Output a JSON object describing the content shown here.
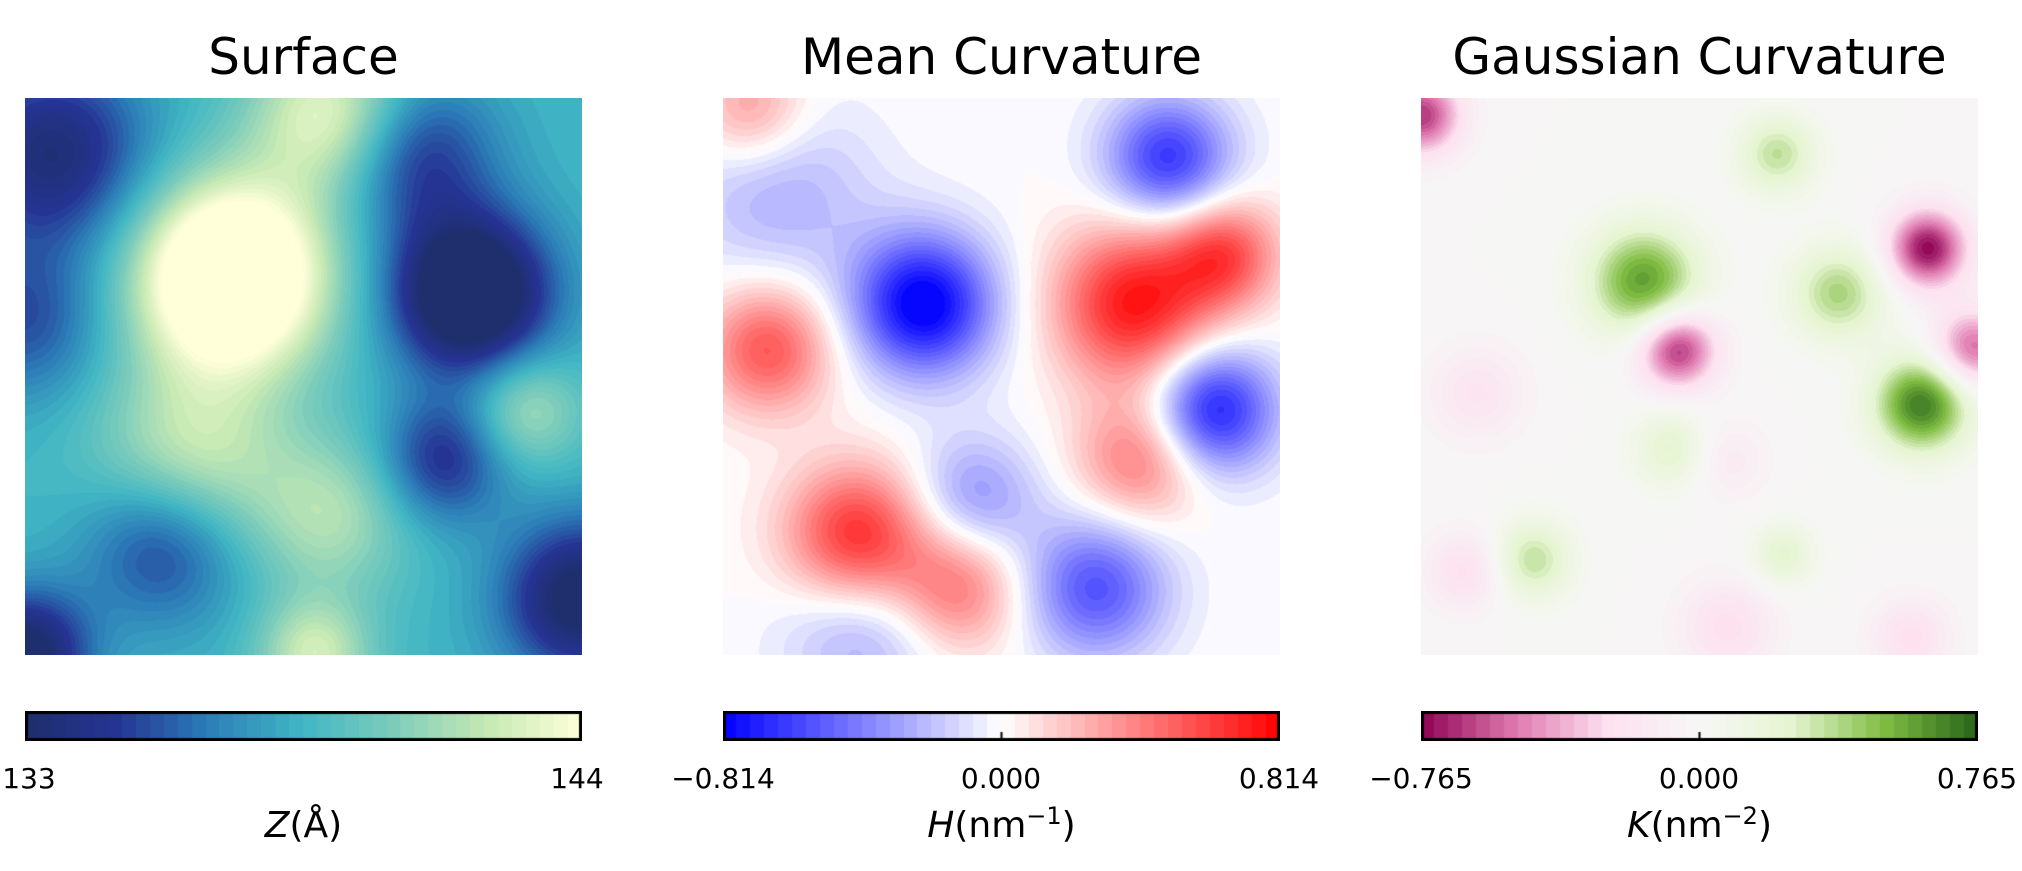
{
  "chart_data": [
    {
      "type": "heatmap",
      "title": "Surface",
      "colormap": "YlGnBu_r",
      "colors": [
        "#1f2d6a",
        "#253494",
        "#2c7fb8",
        "#41b6c4",
        "#7fcdbb",
        "#c7e9b4",
        "#ffffd9"
      ],
      "vmin": 133,
      "vmax": 144,
      "colorbar_ticks": [
        "133",
        "144"
      ],
      "colorbar_tick_values": [
        133,
        144
      ],
      "label_symbol": "Z",
      "label_unit": "(Å)",
      "label_exp": "",
      "levels": 40,
      "blobs": [
        {
          "x": 0.37,
          "y": 0.32,
          "v": 10,
          "s": 0.12
        },
        {
          "x": 0.55,
          "y": 0.03,
          "v": 5,
          "s": 0.1
        },
        {
          "x": 0.3,
          "y": 0.65,
          "v": 4,
          "s": 0.12
        },
        {
          "x": 0.55,
          "y": 0.75,
          "v": 3,
          "s": 0.1
        },
        {
          "x": 0.52,
          "y": 1.0,
          "v": 4,
          "s": 0.07
        },
        {
          "x": 0.9,
          "y": 0.56,
          "v": 3,
          "s": 0.07
        },
        {
          "x": 0.8,
          "y": 0.35,
          "v": -8,
          "s": 0.1
        },
        {
          "x": 0.7,
          "y": 0.1,
          "v": -4,
          "s": 0.1
        },
        {
          "x": 0.05,
          "y": 0.1,
          "v": -5,
          "s": 0.12
        },
        {
          "x": 0.25,
          "y": 0.8,
          "v": -4,
          "s": 0.1
        },
        {
          "x": 0.0,
          "y": 1.0,
          "v": -6,
          "s": 0.08
        },
        {
          "x": 1.0,
          "y": 0.9,
          "v": -6,
          "s": 0.1
        },
        {
          "x": 0.75,
          "y": 0.65,
          "v": -4,
          "s": 0.08
        },
        {
          "x": 0.0,
          "y": 0.4,
          "v": -3,
          "s": 0.1
        }
      ],
      "base": 138.5
    },
    {
      "type": "heatmap",
      "title": "Mean Curvature",
      "colormap": "bwr",
      "colors": [
        "#0000ff",
        "#ffffff",
        "#ff0000"
      ],
      "vmin": -0.814,
      "vmax": 0.814,
      "colorbar_ticks": [
        "−0.814",
        "0.000",
        "0.814"
      ],
      "colorbar_tick_values": [
        -0.814,
        0.0,
        0.814
      ],
      "label_symbol": "H",
      "label_unit": "(nm",
      "label_exp": "−1",
      "label_close": ")",
      "levels": 40,
      "blobs": [
        {
          "x": 0.36,
          "y": 0.37,
          "v": -0.85,
          "s": 0.09
        },
        {
          "x": 0.8,
          "y": 0.11,
          "v": -0.65,
          "s": 0.08
        },
        {
          "x": 0.88,
          "y": 0.56,
          "v": -0.75,
          "s": 0.08
        },
        {
          "x": 0.67,
          "y": 0.88,
          "v": -0.55,
          "s": 0.09
        },
        {
          "x": 0.1,
          "y": 0.17,
          "v": -0.25,
          "s": 0.12
        },
        {
          "x": 0.45,
          "y": 0.72,
          "v": -0.35,
          "s": 0.08
        },
        {
          "x": 0.25,
          "y": 0.95,
          "v": -0.3,
          "s": 0.1
        },
        {
          "x": 0.74,
          "y": 0.37,
          "v": 0.75,
          "s": 0.1
        },
        {
          "x": 0.9,
          "y": 0.28,
          "v": 0.55,
          "s": 0.07
        },
        {
          "x": 0.08,
          "y": 0.45,
          "v": 0.55,
          "s": 0.08
        },
        {
          "x": 0.24,
          "y": 0.79,
          "v": 0.7,
          "s": 0.09
        },
        {
          "x": 0.42,
          "y": 0.88,
          "v": 0.45,
          "s": 0.08
        },
        {
          "x": 0.75,
          "y": 0.65,
          "v": 0.45,
          "s": 0.08
        },
        {
          "x": 0.05,
          "y": 0.02,
          "v": 0.35,
          "s": 0.07
        }
      ],
      "base": 0.0
    },
    {
      "type": "heatmap",
      "title": "Gaussian Curvature",
      "colormap": "PiYG",
      "colors": [
        "#8e0152",
        "#de77ae",
        "#fde0ef",
        "#f7f7f7",
        "#e6f5d0",
        "#7fbc41",
        "#276419"
      ],
      "vmin": -0.765,
      "vmax": 0.765,
      "colorbar_ticks": [
        "−0.765",
        "0.000",
        "0.765"
      ],
      "colorbar_tick_values": [
        -0.765,
        0.0,
        0.765
      ],
      "label_symbol": "K",
      "label_unit": "(nm",
      "label_exp": "−2",
      "label_close": ")",
      "levels": 40,
      "blobs": [
        {
          "x": 0.4,
          "y": 0.33,
          "v": 0.6,
          "s": 0.07
        },
        {
          "x": 0.9,
          "y": 0.55,
          "v": 0.7,
          "s": 0.06
        },
        {
          "x": 0.75,
          "y": 0.35,
          "v": 0.4,
          "s": 0.06
        },
        {
          "x": 0.64,
          "y": 0.1,
          "v": 0.35,
          "s": 0.05
        },
        {
          "x": 0.2,
          "y": 0.83,
          "v": 0.35,
          "s": 0.05
        },
        {
          "x": 0.45,
          "y": 0.63,
          "v": 0.25,
          "s": 0.05
        },
        {
          "x": 0.65,
          "y": 0.82,
          "v": 0.25,
          "s": 0.04
        },
        {
          "x": 0.91,
          "y": 0.27,
          "v": -0.75,
          "s": 0.05
        },
        {
          "x": 0.46,
          "y": 0.45,
          "v": -0.7,
          "s": 0.05
        },
        {
          "x": 0.99,
          "y": 0.45,
          "v": -0.55,
          "s": 0.05
        },
        {
          "x": 0.0,
          "y": 0.03,
          "v": -0.65,
          "s": 0.05
        },
        {
          "x": 0.1,
          "y": 0.53,
          "v": -0.2,
          "s": 0.06
        },
        {
          "x": 0.08,
          "y": 0.85,
          "v": -0.25,
          "s": 0.05
        },
        {
          "x": 0.55,
          "y": 0.95,
          "v": -0.25,
          "s": 0.06
        },
        {
          "x": 0.88,
          "y": 0.97,
          "v": -0.25,
          "s": 0.05
        },
        {
          "x": 0.55,
          "y": 0.65,
          "v": -0.15,
          "s": 0.05
        }
      ],
      "base": 0.0
    }
  ]
}
